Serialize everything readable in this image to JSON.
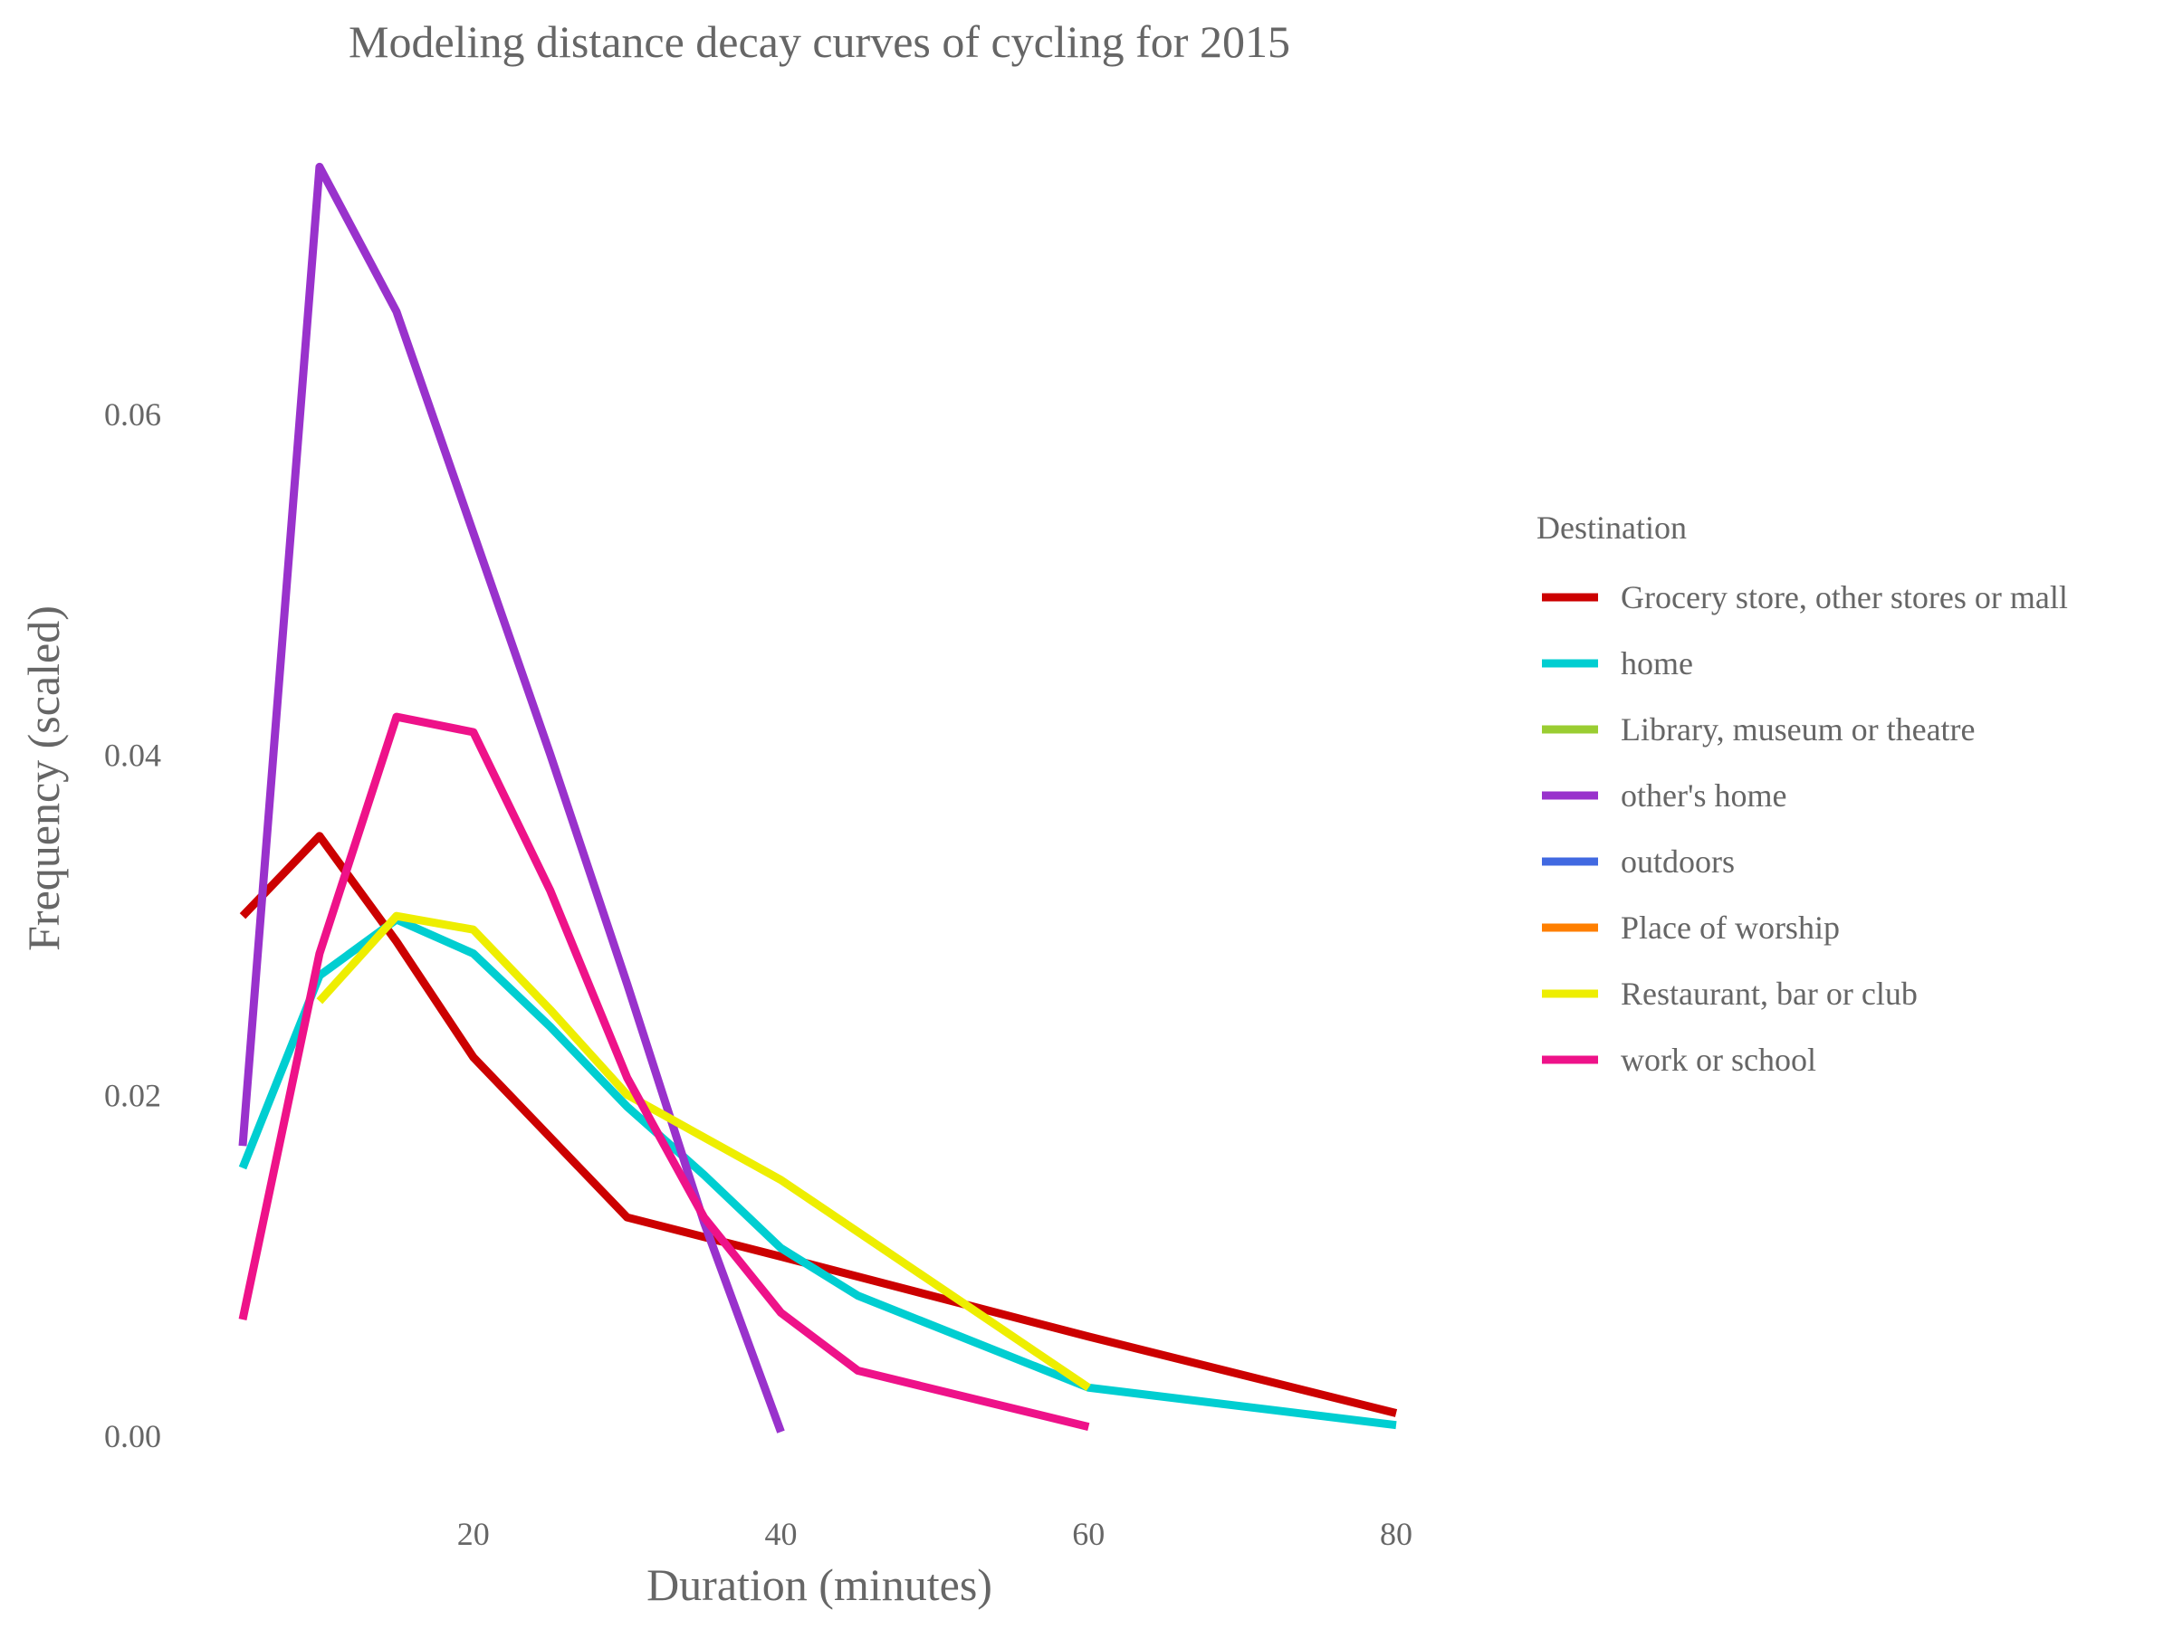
{
  "chart_data": {
    "type": "line",
    "title": "Modeling distance decay curves of cycling for 2015",
    "xlabel": "Duration (minutes)",
    "ylabel": "Frequency (scaled)",
    "xlim": [
      5,
      80
    ],
    "ylim": [
      0,
      0.075
    ],
    "xticks": [
      20,
      40,
      60,
      80
    ],
    "xtick_labels": [
      "20",
      "40",
      "60",
      "80"
    ],
    "yticks": [
      0,
      0.02,
      0.04,
      0.06
    ],
    "ytick_labels": [
      "0.00",
      "0.02",
      "0.04",
      "0.06"
    ],
    "grid": false,
    "legend": {
      "title": "Destination",
      "placement": "right",
      "entries": [
        {
          "name": "Grocery store, other stores or mall",
          "color": "#CC0000"
        },
        {
          "name": "home",
          "color": "#00CED1"
        },
        {
          "name": "Library, museum or theatre",
          "color": "#9ACD32"
        },
        {
          "name": "other's home",
          "color": "#9932CC"
        },
        {
          "name": "outdoors",
          "color": "#4169E1"
        },
        {
          "name": "Place of worship",
          "color": "#FF7F00"
        },
        {
          "name": "Restaurant, bar or club",
          "color": "#EEEE00"
        },
        {
          "name": "work or school",
          "color": "#EE1289"
        }
      ]
    },
    "series": [
      {
        "name": "Grocery store, other stores or mall",
        "color": "#CC0000",
        "x": [
          5,
          10,
          15,
          20,
          25,
          30,
          40,
          60,
          80
        ],
        "y": [
          0.0305,
          0.0352,
          0.029,
          0.0222,
          0.0175,
          0.0128,
          0.0105,
          0.0058,
          0.0013
        ]
      },
      {
        "name": "home",
        "color": "#00CED1",
        "x": [
          5,
          10,
          15,
          20,
          25,
          30,
          35,
          40,
          45,
          60,
          80
        ],
        "y": [
          0.0157,
          0.027,
          0.0303,
          0.0283,
          0.024,
          0.0193,
          0.0153,
          0.011,
          0.0082,
          0.0028,
          0.0006
        ]
      },
      {
        "name": "other's home",
        "color": "#9932CC",
        "x": [
          5,
          10,
          15,
          20,
          25,
          30,
          35,
          40
        ],
        "y": [
          0.017,
          0.0745,
          0.066,
          0.053,
          0.04,
          0.0265,
          0.0125,
          0.0002
        ]
      },
      {
        "name": "Restaurant, bar or club",
        "color": "#EEEE00",
        "x": [
          10,
          15,
          20,
          25,
          30,
          40,
          60
        ],
        "y": [
          0.0255,
          0.0305,
          0.0297,
          0.025,
          0.02,
          0.015,
          0.0028
        ]
      },
      {
        "name": "work or school",
        "color": "#EE1289",
        "x": [
          5,
          10,
          15,
          20,
          25,
          30,
          35,
          40,
          45,
          60
        ],
        "y": [
          0.0068,
          0.0283,
          0.0422,
          0.0413,
          0.032,
          0.021,
          0.0128,
          0.0072,
          0.0038,
          0.0005
        ]
      }
    ]
  }
}
